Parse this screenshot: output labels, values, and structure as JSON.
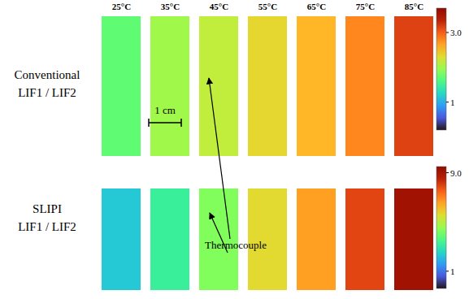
{
  "chart_data": [
    {
      "type": "heatmap",
      "title_lines": [
        "Conventional",
        "LIF1 / LIF2"
      ],
      "categories": [
        "25°C",
        "35°C",
        "45°C",
        "55°C",
        "65°C",
        "75°C",
        "85°C"
      ],
      "values": [
        1.7,
        2.0,
        2.15,
        2.35,
        2.55,
        2.8,
        3.15
      ],
      "colorbar": {
        "range": [
          0.2,
          3.7
        ],
        "ticks": [
          1,
          {
            "value": 3,
            "label": "3.0"
          }
        ]
      },
      "annotations": [
        "Thermocouple",
        "1 cm"
      ]
    },
    {
      "type": "heatmap",
      "title_lines": [
        "SLIPI",
        "LIF1 / LIF2"
      ],
      "categories": [
        "25°C",
        "35°C",
        "45°C",
        "55°C",
        "65°C",
        "75°C",
        "85°C"
      ],
      "values": [
        2.3,
        3.2,
        4.3,
        5.6,
        6.6,
        7.9,
        8.9
      ],
      "colorbar": {
        "range": [
          -0.4,
          9.5
        ],
        "ticks": [
          1,
          {
            "value": 9,
            "label": "9.0"
          }
        ]
      }
    }
  ]
}
